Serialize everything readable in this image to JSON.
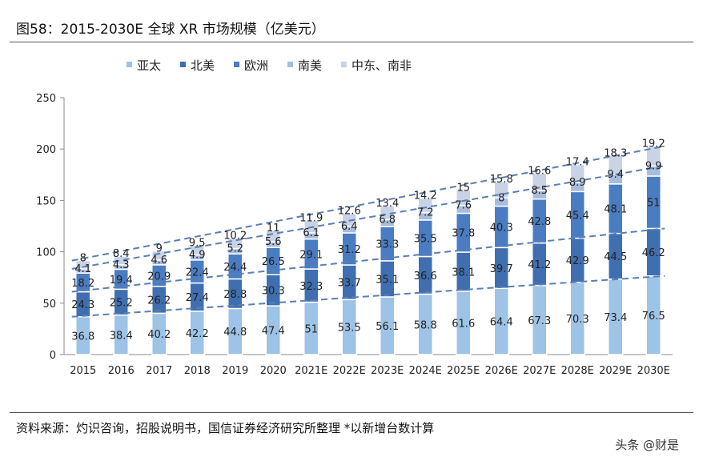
{
  "title": "图58：2015-2030E 全球 XR 市场规模（亿美元）",
  "source": "资料来源：灼识咨询，招股说明书，国信证券经济研究所整理   *以新增台数计算",
  "watermark": "头条 @财是",
  "chart_data": {
    "type": "stacked-bar",
    "title": "",
    "categories": [
      "2015",
      "2016",
      "2017",
      "2018",
      "2019",
      "2020",
      "2021E",
      "2022E",
      "2023E",
      "2024E",
      "2025E",
      "2026E",
      "2027E",
      "2028E",
      "2029E",
      "2030E"
    ],
    "ylim": [
      0,
      250
    ],
    "yticks": [
      0,
      50,
      100,
      150,
      200,
      250
    ],
    "legend_position": "top",
    "grid": false,
    "trend_lines": "dashed",
    "series": [
      {
        "name": "亚太",
        "color": "#9dc3e6",
        "values": [
          36.8,
          38.4,
          40.2,
          42.2,
          44.8,
          47.4,
          51,
          53.5,
          56.1,
          58.8,
          61.6,
          64.4,
          67.3,
          70.3,
          73.4,
          76.5
        ]
      },
      {
        "name": "北美",
        "color": "#3f6fb0",
        "values": [
          24.3,
          25.2,
          26.2,
          27.4,
          28.8,
          30.3,
          32.3,
          33.7,
          35.1,
          36.6,
          38.1,
          39.7,
          41.2,
          42.9,
          44.5,
          46.2
        ]
      },
      {
        "name": "欧洲",
        "color": "#4a7cc2",
        "values": [
          18.2,
          19.4,
          20.9,
          22.4,
          24.4,
          26.5,
          29.1,
          31.2,
          33.3,
          35.5,
          37.8,
          40.3,
          42.8,
          45.4,
          48.1,
          51
        ]
      },
      {
        "name": "南美",
        "color": "#a8bcdc",
        "values": [
          4.1,
          4.3,
          4.6,
          4.9,
          5.2,
          5.6,
          6.1,
          6.4,
          6.8,
          7.2,
          7.6,
          8,
          8.5,
          8.9,
          9.4,
          9.9
        ]
      },
      {
        "name": "中东、南非",
        "color": "#c9d3e6",
        "values": [
          8,
          8.4,
          9,
          9.5,
          10.2,
          11,
          11.9,
          12.6,
          13.4,
          14.2,
          15,
          15.8,
          16.6,
          17.4,
          18.3,
          19.2
        ]
      }
    ]
  }
}
